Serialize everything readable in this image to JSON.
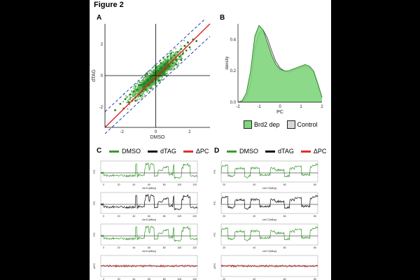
{
  "figure": {
    "title": "Figure 2"
  },
  "panels": {
    "A": "A",
    "B": "B",
    "C": "C",
    "D": "D"
  },
  "colors": {
    "dmso": "#3a9a2f",
    "dtag": "#111111",
    "delta": "#e03030",
    "brd2": "#7ed77a",
    "control": "#d8d8d8"
  },
  "legend_cd": [
    {
      "label": "DMSO",
      "color": "#3a9a2f"
    },
    {
      "label": "dTAG",
      "color": "#111111"
    },
    {
      "label": "ΔPC",
      "color": "#e03030"
    }
  ],
  "chart_data": [
    {
      "id": "A",
      "type": "scatter",
      "xlabel": "DMSO",
      "ylabel": "dTAG",
      "xlim": [
        -3,
        3.2
      ],
      "ylim": [
        -3.3,
        3.3
      ],
      "xticks": [
        -2,
        0,
        2
      ],
      "yticks": [
        -2,
        0,
        2
      ],
      "reference_line": {
        "slope": 1,
        "intercept": 0,
        "color": "red"
      },
      "dashed_bands": {
        "offsets": [
          -0.7,
          0.7
        ],
        "color": "blue"
      },
      "points": {
        "x": [
          -2.4,
          -2.1,
          -1.9,
          -1.8,
          -1.6,
          -1.5,
          -1.4,
          -1.3,
          -1.2,
          -1.1,
          -1.0,
          -0.9,
          -0.8,
          -0.7,
          -0.6,
          -0.5,
          -0.4,
          -0.3,
          -0.2,
          -0.1,
          0.0,
          0.1,
          0.2,
          0.3,
          0.4,
          0.5,
          0.6,
          0.7,
          0.8,
          0.9,
          1.0,
          1.1,
          1.2,
          1.3,
          1.4,
          1.5,
          1.6,
          1.7,
          1.8,
          1.9,
          2.0,
          2.2,
          2.4,
          -1.0,
          -1.2,
          -0.9,
          0.3,
          0.5,
          0.9,
          1.2,
          -0.5,
          -0.3,
          0.0,
          0.2,
          0.7,
          1.5
        ],
        "y": [
          -2.2,
          -1.8,
          -2.1,
          -1.5,
          -1.7,
          -1.2,
          -1.6,
          -1.0,
          -1.4,
          -0.9,
          -1.2,
          -0.6,
          -1.0,
          -0.5,
          -0.9,
          -0.3,
          -0.6,
          -0.1,
          -0.4,
          0.2,
          -0.1,
          0.3,
          0.0,
          0.5,
          0.2,
          0.7,
          0.4,
          0.9,
          0.6,
          1.1,
          0.8,
          1.3,
          1.0,
          1.5,
          1.2,
          1.7,
          1.4,
          1.9,
          1.6,
          2.1,
          1.8,
          2.3,
          2.2,
          -0.6,
          -1.6,
          -1.3,
          0.8,
          0.1,
          1.4,
          0.7,
          0.1,
          -0.8,
          0.5,
          -0.3,
          1.2,
          1.0
        ]
      }
    },
    {
      "id": "B",
      "type": "area",
      "xlabel": "PC",
      "ylabel": "density",
      "xlim": [
        -2,
        2
      ],
      "ylim": [
        0,
        0.5
      ],
      "xticks": [
        -2,
        -1,
        0,
        1,
        2
      ],
      "yticks": [
        0.0,
        0.2,
        0.4
      ],
      "x": [
        -2.0,
        -1.8,
        -1.6,
        -1.4,
        -1.2,
        -1.0,
        -0.8,
        -0.6,
        -0.4,
        -0.2,
        0.0,
        0.2,
        0.4,
        0.6,
        0.8,
        1.0,
        1.2,
        1.4,
        1.6,
        1.8,
        2.0
      ],
      "series": [
        {
          "name": "Brd2 dep",
          "values": [
            0.0,
            0.01,
            0.06,
            0.2,
            0.42,
            0.49,
            0.46,
            0.38,
            0.3,
            0.24,
            0.21,
            0.2,
            0.2,
            0.21,
            0.22,
            0.23,
            0.24,
            0.23,
            0.2,
            0.12,
            0.03
          ]
        },
        {
          "name": "Control",
          "values": [
            0.0,
            0.005,
            0.03,
            0.12,
            0.34,
            0.44,
            0.46,
            0.41,
            0.33,
            0.26,
            0.22,
            0.2,
            0.19,
            0.2,
            0.21,
            0.22,
            0.23,
            0.22,
            0.19,
            0.11,
            0.03
          ]
        }
      ]
    },
    {
      "id": "C",
      "type": "line",
      "xlabel": "chr11(Mbp)",
      "xticks": [
        "0",
        "20",
        "40",
        "60",
        "80",
        "100",
        "120"
      ],
      "tracks": [
        {
          "name": "DMSO",
          "ylabel": "PC",
          "seed": 3
        },
        {
          "name": "dTAG",
          "ylabel": "PC",
          "seed": 3
        },
        {
          "name": "DMSO",
          "ylabel": "PC",
          "seed": 3
        },
        {
          "name": "ΔPC",
          "ylabel": "ΔPC",
          "seed": 9
        }
      ]
    },
    {
      "id": "D",
      "type": "line",
      "xlabel": "chr17(Mbp)",
      "xticks": [
        "20",
        "40",
        "60",
        "80"
      ],
      "tracks": [
        {
          "name": "DMSO",
          "ylabel": "PC",
          "seed": 7
        },
        {
          "name": "dTAG",
          "ylabel": "PC",
          "seed": 7
        },
        {
          "name": "DMSO",
          "ylabel": "PC",
          "seed": 7
        },
        {
          "name": "ΔPC",
          "ylabel": "ΔPC",
          "seed": 13
        }
      ]
    }
  ],
  "legend_b": [
    {
      "label": "Brd2 dep",
      "color": "#7ed77a"
    },
    {
      "label": "Control",
      "color": "#d8d8d8"
    }
  ]
}
